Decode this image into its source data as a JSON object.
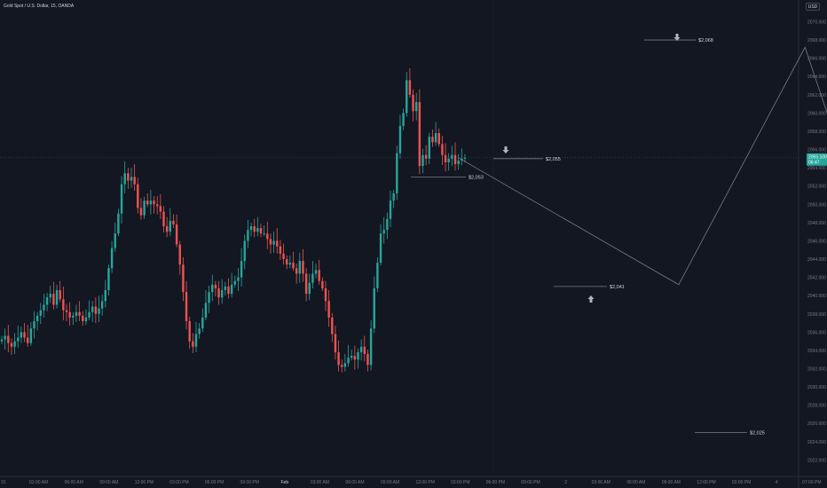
{
  "header": {
    "symbol_title": "Gold Spot / U.S. Dollar, 15, OANDA",
    "currency_button": "USD"
  },
  "colors": {
    "background": "#131722",
    "up": "#26a69a",
    "down": "#ef5350",
    "projection_line": "#787b86",
    "axis_text": "#787b86",
    "label_text": "#d1d4dc",
    "arrow": "#b2b5be"
  },
  "chart_data": {
    "type": "candlestick",
    "y_axis": {
      "range": [
        2021,
        2072
      ],
      "ticks": [
        "2022.000",
        "2024.000",
        "2026.000",
        "2028.000",
        "2030.000",
        "2032.000",
        "2034.000",
        "2036.000",
        "2038.000",
        "2040.000",
        "2042.000",
        "2044.000",
        "2046.000",
        "2048.000",
        "2050.000",
        "2052.000",
        "2054.000",
        "2056.000",
        "2058.000",
        "2060.000",
        "2062.000",
        "2064.000",
        "2066.000",
        "2068.000",
        "2070.000"
      ]
    },
    "x_axis": {
      "ticks": [
        "31",
        "03:00 AM",
        "06:00 AM",
        "09:00 AM",
        "12:00 PM",
        "03:00 PM",
        "06:00 PM",
        "09:00 PM",
        "Feb",
        "03:00 AM",
        "06:00 AM",
        "09:00 AM",
        "12:00 PM",
        "03:00 PM",
        "06:00 PM",
        "09:00 PM",
        "2",
        "03:00 AM",
        "06:00 AM",
        "09:00 AM",
        "12:00 PM",
        "03:00 PM",
        "4",
        "07:00 PM"
      ]
    },
    "current_price": {
      "price": "2055.100",
      "countdown": "06:47"
    },
    "closes": [
      2035.2,
      2035.6,
      2034.8,
      2034.4,
      2035.0,
      2035.4,
      2036.0,
      2035.4,
      2034.8,
      2036.4,
      2037.2,
      2037.8,
      2038.4,
      2039.0,
      2039.8,
      2040.2,
      2039.0,
      2040.6,
      2039.6,
      2038.4,
      2038.2,
      2037.6,
      2037.8,
      2038.2,
      2037.8,
      2037.2,
      2037.6,
      2038.2,
      2038.8,
      2038.0,
      2038.6,
      2039.4,
      2040.6,
      2043.0,
      2045.2,
      2046.8,
      2049.0,
      2052.2,
      2053.4,
      2052.6,
      2053.0,
      2052.2,
      2049.6,
      2048.8,
      2050.4,
      2050.0,
      2050.4,
      2050.0,
      2049.8,
      2049.2,
      2047.6,
      2047.0,
      2048.2,
      2047.8,
      2045.6,
      2043.4,
      2040.4,
      2037.2,
      2035.0,
      2034.4,
      2035.8,
      2036.4,
      2037.6,
      2039.2,
      2040.4,
      2041.2,
      2040.8,
      2039.8,
      2040.6,
      2041.0,
      2040.2,
      2041.2,
      2041.6,
      2042.0,
      2043.8,
      2046.0,
      2047.2,
      2047.6,
      2047.0,
      2047.4,
      2046.8,
      2046.8,
      2046.2,
      2045.6,
      2046.0,
      2045.4,
      2044.6,
      2044.0,
      2043.4,
      2043.6,
      2043.0,
      2042.4,
      2043.8,
      2042.4,
      2040.2,
      2041.4,
      2042.4,
      2042.8,
      2041.6,
      2040.8,
      2039.4,
      2037.6,
      2035.8,
      2033.8,
      2032.4,
      2032.2,
      2032.6,
      2033.2,
      2033.4,
      2033.0,
      2033.8,
      2034.4,
      2033.6,
      2032.4,
      2036.4,
      2040.8,
      2043.6,
      2046.8,
      2047.2,
      2048.4,
      2050.4,
      2051.2,
      2055.6,
      2058.6,
      2060.0,
      2063.6,
      2062.0,
      2060.2,
      2061.2,
      2054.2,
      2055.4,
      2055.0,
      2057.4,
      2056.8,
      2057.8,
      2056.6,
      2055.4,
      2054.6,
      2055.0,
      2055.4,
      2054.4,
      2054.8,
      2055.0,
      2055.1
    ],
    "first_open": 2035.0,
    "projection": {
      "points": [
        {
          "time_index": 141,
          "price": 2055.1
        },
        {
          "time_index": 209,
          "price": 2041.2
        },
        {
          "time_index": 248,
          "price": 2067.2
        },
        {
          "time_index": 288,
          "price": 2025.2
        }
      ],
      "levels": [
        {
          "price": 2053.0,
          "label": "$2,053"
        },
        {
          "price": 2055.0,
          "label": "$2,055",
          "arrow": "down"
        },
        {
          "price": 2041.0,
          "label": "$2,041",
          "arrow": "up"
        },
        {
          "price": 2068.0,
          "label": "$2,068",
          "arrow": "down"
        },
        {
          "price": 2025.0,
          "label": "$2,025"
        }
      ]
    }
  }
}
